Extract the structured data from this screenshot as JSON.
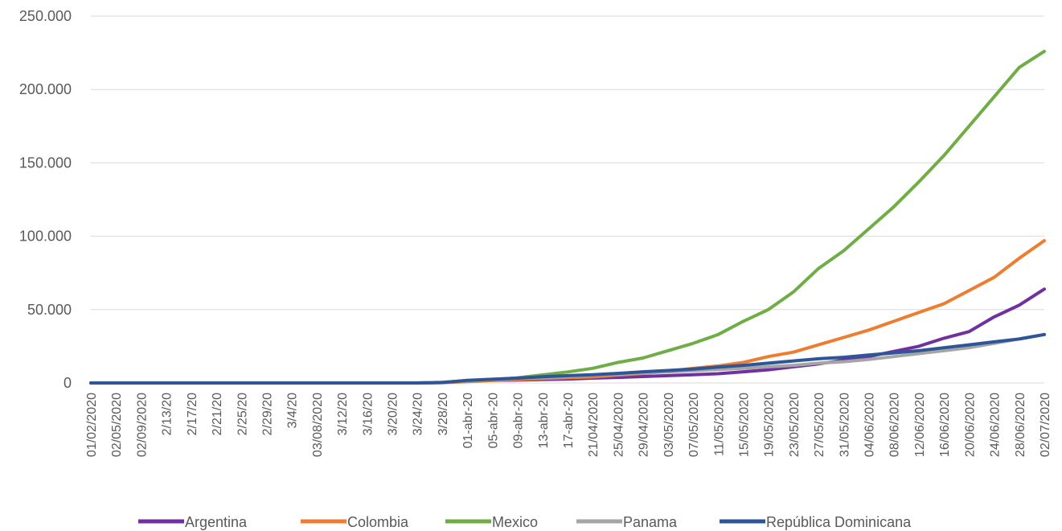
{
  "chart_data": {
    "type": "line",
    "title": "",
    "xlabel": "",
    "ylabel": "",
    "ylim": [
      0,
      250000
    ],
    "yticks": [
      0,
      50000,
      100000,
      150000,
      200000,
      250000
    ],
    "ytick_labels": [
      "0",
      "50.000",
      "100.000",
      "150.000",
      "200.000",
      "250.000"
    ],
    "grid": true,
    "legend_position": "bottom",
    "x_tick_labels": [
      "01/02/2020",
      "02/05/2020",
      "02/09/2020",
      "2/13/20",
      "2/17/20",
      "2/21/20",
      "2/25/20",
      "2/29/20",
      "3/4/20",
      "03/08/2020",
      "3/12/20",
      "3/16/20",
      "3/20/20",
      "3/24/20",
      "3/28/20",
      "01-abr-20",
      "05-abr-20",
      "09-abr-20",
      "13-abr-20",
      "17-abr-20",
      "21/04/2020",
      "25/04/2020",
      "29/04/2020",
      "03/05/2020",
      "07/05/2020",
      "11/05/2020",
      "15/05/2020",
      "19/05/2020",
      "23/05/2020",
      "27/05/2020",
      "31/05/2020",
      "04/06/2020",
      "08/06/2020",
      "12/06/2020",
      "16/06/2020",
      "20/06/2020",
      "24/06/2020",
      "28/06/2020",
      "02/07/2020"
    ],
    "series": [
      {
        "name": "Argentina",
        "color": "#7030a0",
        "values": [
          0,
          0,
          0,
          0,
          0,
          0,
          0,
          0,
          0,
          0,
          0,
          0,
          0,
          0,
          300,
          1500,
          1800,
          2000,
          2300,
          2700,
          3300,
          3800,
          4400,
          5000,
          5600,
          6300,
          7600,
          9000,
          11000,
          13000,
          15500,
          18000,
          21500,
          25000,
          30500,
          35000,
          45000,
          53000,
          64000
        ]
      },
      {
        "name": "Colombia",
        "color": "#ed7d31",
        "values": [
          0,
          0,
          0,
          0,
          0,
          0,
          0,
          0,
          0,
          0,
          0,
          0,
          0,
          0,
          200,
          900,
          1700,
          2400,
          3000,
          3600,
          4100,
          5400,
          6500,
          8000,
          10000,
          11600,
          14000,
          18000,
          21000,
          26000,
          31000,
          36000,
          42000,
          48000,
          54000,
          63000,
          72000,
          85000,
          97000
        ]
      },
      {
        "name": "Mexico",
        "color": "#70ad47",
        "values": [
          0,
          0,
          0,
          0,
          0,
          0,
          0,
          0,
          0,
          0,
          0,
          0,
          0,
          0,
          500,
          1500,
          2300,
          3500,
          5500,
          7500,
          10000,
          14000,
          17000,
          22000,
          27000,
          33000,
          42000,
          50000,
          62000,
          78000,
          90000,
          105000,
          120000,
          137000,
          155000,
          175000,
          195000,
          215000,
          226000
        ]
      },
      {
        "name": "Panama",
        "color": "#a5a5a5",
        "values": [
          0,
          0,
          0,
          0,
          0,
          0,
          0,
          0,
          0,
          0,
          0,
          0,
          0,
          0,
          400,
          1600,
          2500,
          3300,
          3800,
          4300,
          5300,
          6000,
          6800,
          7500,
          8400,
          9200,
          10000,
          11000,
          12000,
          13500,
          14500,
          16000,
          18000,
          20000,
          22000,
          24000,
          27000,
          30000,
          33000
        ]
      },
      {
        "name": "República Dominicana",
        "color": "#2e5597",
        "values": [
          0,
          0,
          0,
          0,
          0,
          0,
          0,
          0,
          0,
          0,
          0,
          0,
          0,
          0,
          300,
          1800,
          2500,
          3300,
          4300,
          5000,
          5600,
          6500,
          7600,
          8500,
          9500,
          10800,
          12000,
          13500,
          15000,
          16500,
          17500,
          19000,
          20500,
          22000,
          24000,
          26000,
          28000,
          30000,
          33000
        ]
      }
    ]
  }
}
